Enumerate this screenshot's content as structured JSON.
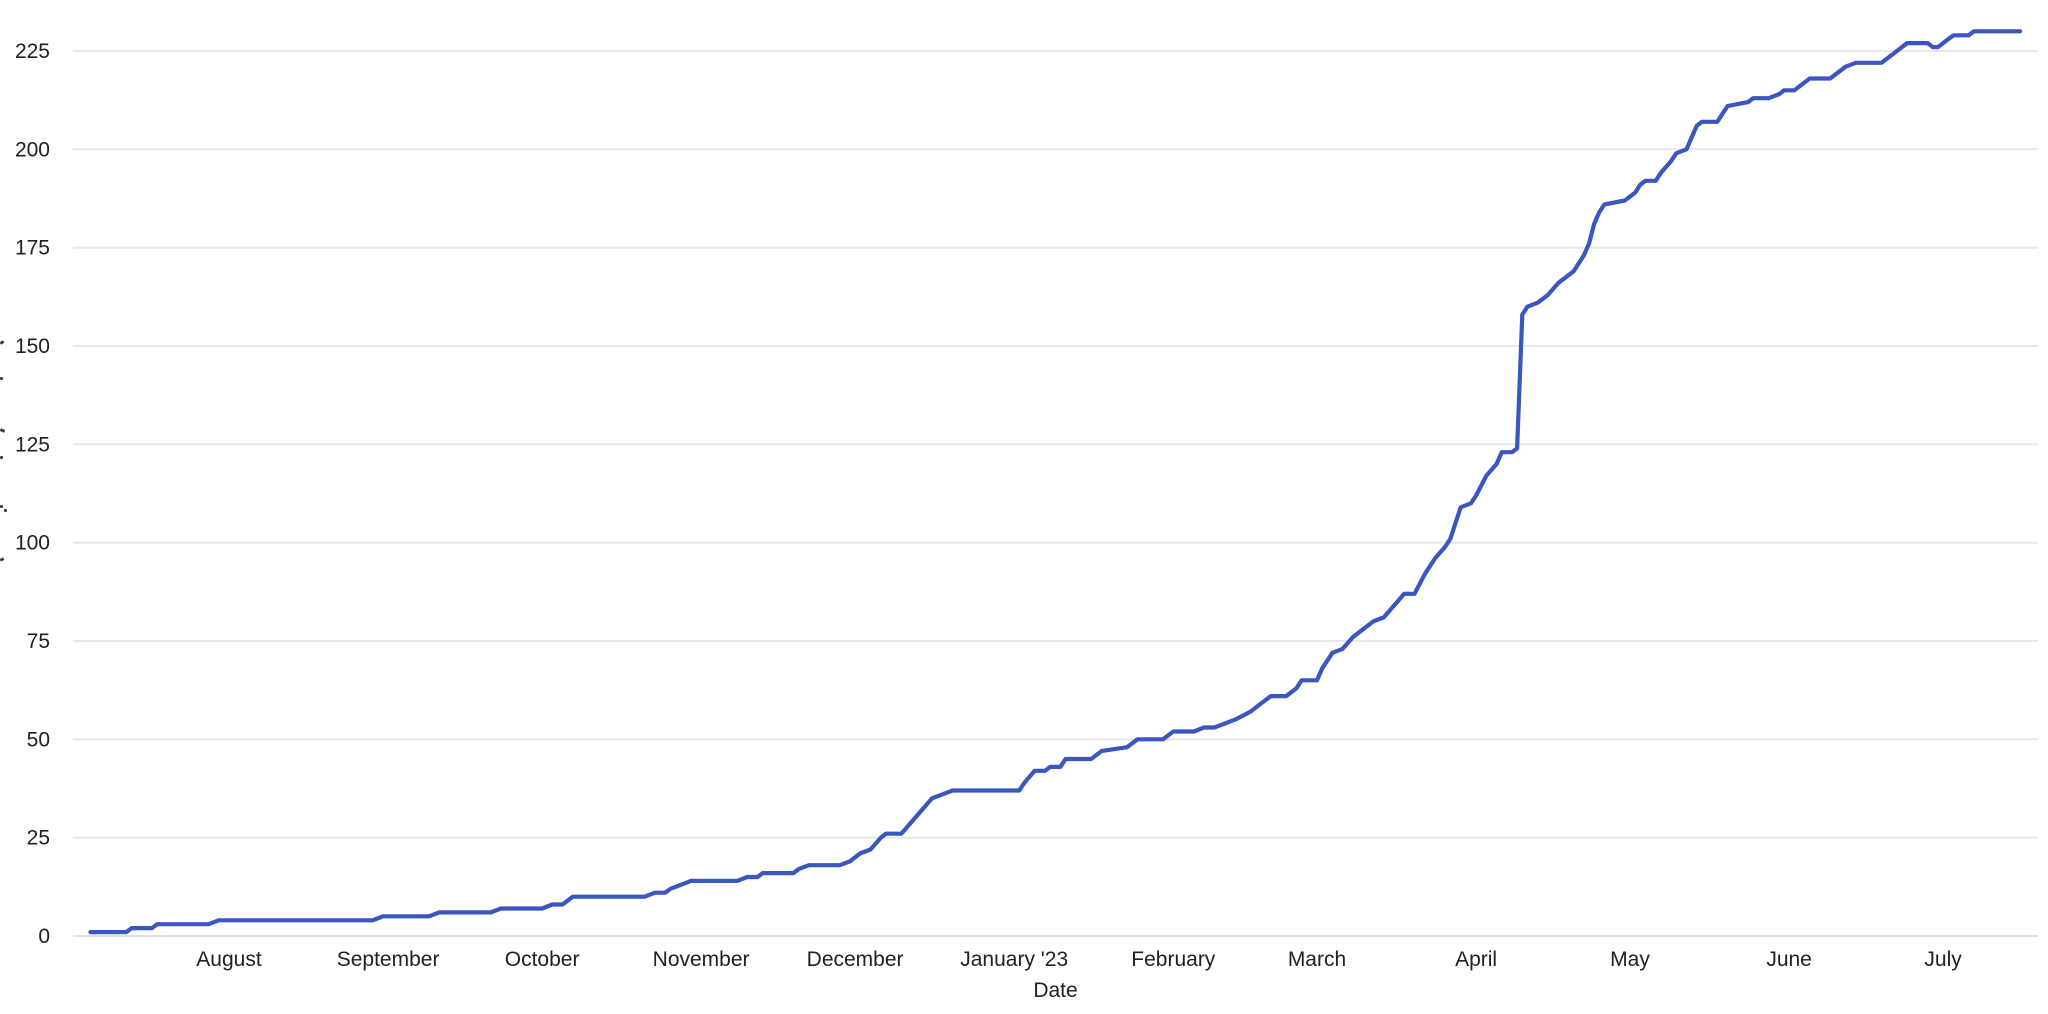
{
  "page": {
    "background": "#ffffff"
  },
  "chart_data": {
    "type": "line",
    "title": "",
    "xlabel": "Date",
    "ylabel": "",
    "ylabel_clipped_offscreen": true,
    "grid": true,
    "legend": "none",
    "ylim": [
      0,
      238
    ],
    "xlim": [
      "2022-07-02",
      "2023-07-20"
    ],
    "y_ticks": [
      0,
      25,
      50,
      75,
      100,
      125,
      150,
      175,
      200,
      225
    ],
    "x_ticks": [
      {
        "date": "2022-08-01",
        "label": "August"
      },
      {
        "date": "2022-09-01",
        "label": "September"
      },
      {
        "date": "2022-10-01",
        "label": "October"
      },
      {
        "date": "2022-11-01",
        "label": "November"
      },
      {
        "date": "2022-12-01",
        "label": "December"
      },
      {
        "date": "2023-01-01",
        "label": "January '23"
      },
      {
        "date": "2023-02-01",
        "label": "February"
      },
      {
        "date": "2023-03-01",
        "label": "March"
      },
      {
        "date": "2023-04-01",
        "label": "April"
      },
      {
        "date": "2023-05-01",
        "label": "May"
      },
      {
        "date": "2023-06-01",
        "label": "June"
      },
      {
        "date": "2023-07-01",
        "label": "July"
      }
    ],
    "colors": {
      "line": "#3a56bf",
      "grid": "#e8e8e8",
      "axis_line": "#dde0e8",
      "text": "#212121"
    },
    "series": [
      {
        "name": "cumulative-count",
        "color": "#3a56bf",
        "points": [
          [
            "2022-07-05",
            1
          ],
          [
            "2022-07-12",
            1
          ],
          [
            "2022-07-13",
            2
          ],
          [
            "2022-07-17",
            2
          ],
          [
            "2022-07-18",
            3
          ],
          [
            "2022-07-28",
            3
          ],
          [
            "2022-07-30",
            4
          ],
          [
            "2022-08-29",
            4
          ],
          [
            "2022-08-31",
            5
          ],
          [
            "2022-09-09",
            5
          ],
          [
            "2022-09-11",
            6
          ],
          [
            "2022-09-21",
            6
          ],
          [
            "2022-09-23",
            7
          ],
          [
            "2022-10-01",
            7
          ],
          [
            "2022-10-03",
            8
          ],
          [
            "2022-10-05",
            8
          ],
          [
            "2022-10-06",
            9
          ],
          [
            "2022-10-07",
            10
          ],
          [
            "2022-10-21",
            10
          ],
          [
            "2022-10-23",
            11
          ],
          [
            "2022-10-25",
            11
          ],
          [
            "2022-10-26",
            12
          ],
          [
            "2022-10-28",
            13
          ],
          [
            "2022-10-30",
            14
          ],
          [
            "2022-11-08",
            14
          ],
          [
            "2022-11-10",
            15
          ],
          [
            "2022-11-12",
            15
          ],
          [
            "2022-11-13",
            16
          ],
          [
            "2022-11-19",
            16
          ],
          [
            "2022-11-20",
            17
          ],
          [
            "2022-11-22",
            18
          ],
          [
            "2022-11-28",
            18
          ],
          [
            "2022-11-30",
            19
          ],
          [
            "2022-12-01",
            20
          ],
          [
            "2022-12-02",
            21
          ],
          [
            "2022-12-04",
            22
          ],
          [
            "2022-12-06",
            25
          ],
          [
            "2022-12-07",
            26
          ],
          [
            "2022-12-10",
            26
          ],
          [
            "2022-12-12",
            29
          ],
          [
            "2022-12-14",
            32
          ],
          [
            "2022-12-16",
            35
          ],
          [
            "2022-12-18",
            36
          ],
          [
            "2022-12-20",
            37
          ],
          [
            "2023-01-02",
            37
          ],
          [
            "2023-01-03",
            39
          ],
          [
            "2023-01-05",
            42
          ],
          [
            "2023-01-07",
            42
          ],
          [
            "2023-01-08",
            43
          ],
          [
            "2023-01-10",
            43
          ],
          [
            "2023-01-11",
            45
          ],
          [
            "2023-01-16",
            45
          ],
          [
            "2023-01-18",
            47
          ],
          [
            "2023-01-23",
            48
          ],
          [
            "2023-01-25",
            50
          ],
          [
            "2023-01-30",
            50
          ],
          [
            "2023-02-01",
            52
          ],
          [
            "2023-02-05",
            52
          ],
          [
            "2023-02-07",
            53
          ],
          [
            "2023-02-09",
            53
          ],
          [
            "2023-02-11",
            54
          ],
          [
            "2023-02-13",
            55
          ],
          [
            "2023-02-16",
            57
          ],
          [
            "2023-02-18",
            59
          ],
          [
            "2023-02-20",
            61
          ],
          [
            "2023-02-23",
            61
          ],
          [
            "2023-02-25",
            63
          ],
          [
            "2023-02-26",
            65
          ],
          [
            "2023-03-01",
            65
          ],
          [
            "2023-03-02",
            68
          ],
          [
            "2023-03-04",
            72
          ],
          [
            "2023-03-06",
            73
          ],
          [
            "2023-03-08",
            76
          ],
          [
            "2023-03-10",
            78
          ],
          [
            "2023-03-12",
            80
          ],
          [
            "2023-03-14",
            81
          ],
          [
            "2023-03-16",
            84
          ],
          [
            "2023-03-18",
            87
          ],
          [
            "2023-03-20",
            87
          ],
          [
            "2023-03-22",
            92
          ],
          [
            "2023-03-24",
            96
          ],
          [
            "2023-03-26",
            99
          ],
          [
            "2023-03-27",
            101
          ],
          [
            "2023-03-28",
            105
          ],
          [
            "2023-03-29",
            109
          ],
          [
            "2023-03-31",
            110
          ],
          [
            "2023-04-01",
            112
          ],
          [
            "2023-04-03",
            117
          ],
          [
            "2023-04-05",
            120
          ],
          [
            "2023-04-06",
            123
          ],
          [
            "2023-04-08",
            123
          ],
          [
            "2023-04-09",
            124
          ],
          [
            "2023-04-10",
            158
          ],
          [
            "2023-04-11",
            160
          ],
          [
            "2023-04-13",
            161
          ],
          [
            "2023-04-15",
            163
          ],
          [
            "2023-04-17",
            166
          ],
          [
            "2023-04-19",
            168
          ],
          [
            "2023-04-20",
            169
          ],
          [
            "2023-04-22",
            173
          ],
          [
            "2023-04-23",
            176
          ],
          [
            "2023-04-24",
            181
          ],
          [
            "2023-04-25",
            184
          ],
          [
            "2023-04-26",
            186
          ],
          [
            "2023-04-30",
            187
          ],
          [
            "2023-05-02",
            189
          ],
          [
            "2023-05-03",
            191
          ],
          [
            "2023-05-04",
            192
          ],
          [
            "2023-05-06",
            192
          ],
          [
            "2023-05-07",
            194
          ],
          [
            "2023-05-09",
            197
          ],
          [
            "2023-05-10",
            199
          ],
          [
            "2023-05-12",
            200
          ],
          [
            "2023-05-13",
            203
          ],
          [
            "2023-05-14",
            206
          ],
          [
            "2023-05-15",
            207
          ],
          [
            "2023-05-18",
            207
          ],
          [
            "2023-05-19",
            209
          ],
          [
            "2023-05-20",
            211
          ],
          [
            "2023-05-24",
            212
          ],
          [
            "2023-05-25",
            213
          ],
          [
            "2023-05-28",
            213
          ],
          [
            "2023-05-30",
            214
          ],
          [
            "2023-05-31",
            215
          ],
          [
            "2023-06-02",
            215
          ],
          [
            "2023-06-04",
            217
          ],
          [
            "2023-06-05",
            218
          ],
          [
            "2023-06-09",
            218
          ],
          [
            "2023-06-10",
            219
          ],
          [
            "2023-06-11",
            220
          ],
          [
            "2023-06-12",
            221
          ],
          [
            "2023-06-14",
            222
          ],
          [
            "2023-06-19",
            222
          ],
          [
            "2023-06-21",
            224
          ],
          [
            "2023-06-22",
            225
          ],
          [
            "2023-06-23",
            226
          ],
          [
            "2023-06-24",
            227
          ],
          [
            "2023-06-28",
            227
          ],
          [
            "2023-06-29",
            226
          ],
          [
            "2023-06-30",
            226
          ],
          [
            "2023-07-01",
            227
          ],
          [
            "2023-07-02",
            228
          ],
          [
            "2023-07-03",
            229
          ],
          [
            "2023-07-06",
            229
          ],
          [
            "2023-07-07",
            230
          ],
          [
            "2023-07-16",
            230
          ]
        ]
      }
    ]
  }
}
